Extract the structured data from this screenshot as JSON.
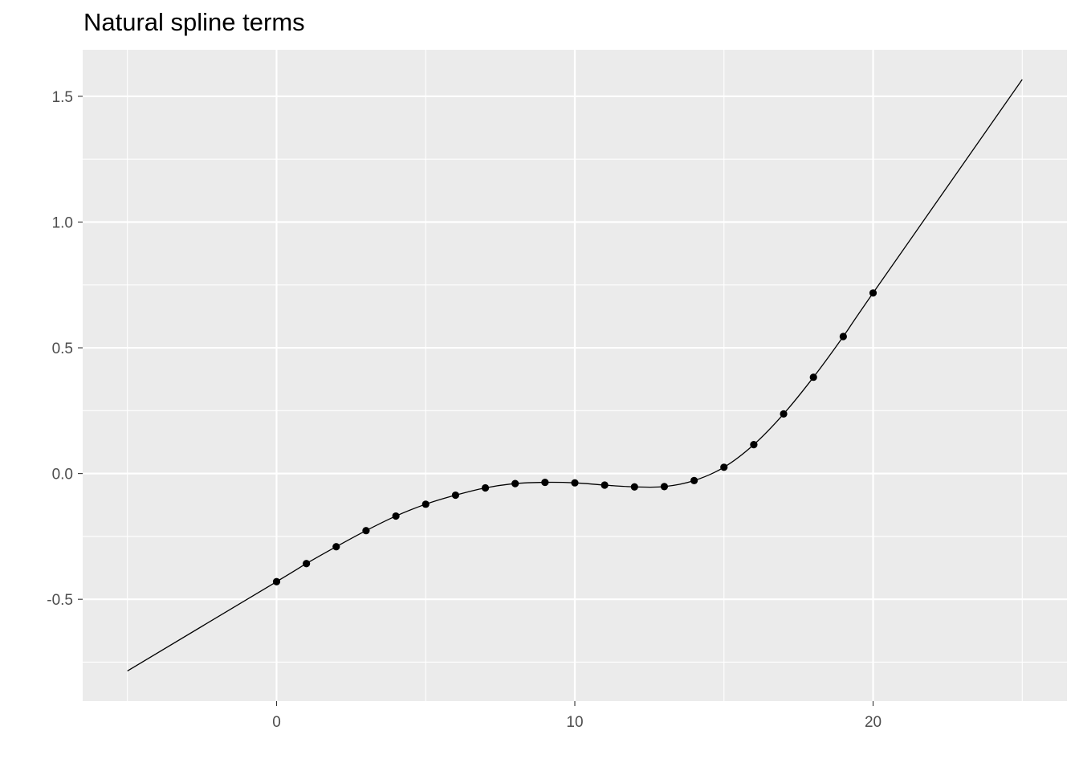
{
  "chart_data": {
    "type": "line",
    "title": "Natural spline terms",
    "xlabel": "",
    "ylabel": "",
    "xlim": [
      -6.5,
      26.5
    ],
    "ylim": [
      -0.905,
      1.685
    ],
    "x_ticks": [
      0,
      10,
      20
    ],
    "y_ticks": [
      -0.5,
      0.0,
      0.5,
      1.0,
      1.5
    ],
    "x_tick_labels": [
      "0",
      "10",
      "20"
    ],
    "y_tick_labels": [
      "-0.5",
      "0.0",
      "0.5",
      "1.0",
      "1.5"
    ],
    "grid": true,
    "legend": "none",
    "series": [
      {
        "type": "line",
        "x": [
          -5,
          0,
          1,
          2,
          3,
          4,
          5,
          6,
          7,
          8,
          9,
          10,
          11,
          12,
          13,
          14,
          15,
          16,
          17,
          18,
          19,
          20,
          25
        ],
        "y": [
          -0.785,
          -0.43,
          -0.358,
          -0.291,
          -0.227,
          -0.169,
          -0.122,
          -0.086,
          -0.057,
          -0.04,
          -0.035,
          -0.037,
          -0.046,
          -0.053,
          -0.052,
          -0.028,
          0.025,
          0.115,
          0.237,
          0.383,
          0.545,
          0.718,
          1.567
        ]
      },
      {
        "type": "scatter",
        "x": [
          0,
          1,
          2,
          3,
          4,
          5,
          6,
          7,
          8,
          9,
          10,
          11,
          12,
          13,
          14,
          15,
          16,
          17,
          18,
          19,
          20
        ],
        "y": [
          -0.43,
          -0.358,
          -0.291,
          -0.227,
          -0.169,
          -0.122,
          -0.086,
          -0.057,
          -0.04,
          -0.035,
          -0.037,
          -0.046,
          -0.053,
          -0.052,
          -0.028,
          0.025,
          0.115,
          0.237,
          0.383,
          0.545,
          0.718
        ]
      }
    ],
    "colors": {
      "panel": "#EBEBEB",
      "grid": "#FFFFFF",
      "line": "#000000",
      "tick_text": "#4D4D4D",
      "tick_mark": "#333333"
    }
  }
}
